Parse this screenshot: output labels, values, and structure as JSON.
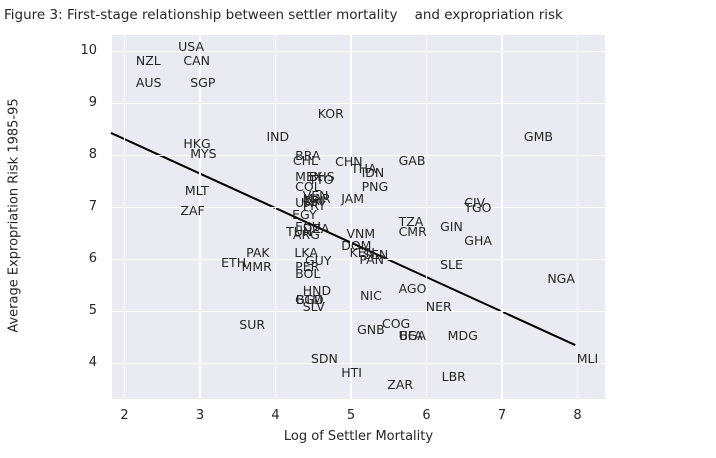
{
  "title": "Figure 3: First-stage relationship between settler mortality    and expropriation risk",
  "colors": {
    "plot_background": "#eaeaf2",
    "grid": "#ffffff",
    "text": "#262626",
    "trend_line": "#000000"
  },
  "chart_data": {
    "type": "scatter",
    "title": "Figure 3: First-stage relationship between settler mortality    and expropriation risk",
    "xlabel": "Log of Settler Mortality",
    "ylabel": "Average Expropriation Risk 1985-95",
    "xlim": [
      1.834,
      8.364
    ],
    "ylim": [
      3.313,
      10.313
    ],
    "x_ticks": [
      2,
      3,
      4,
      5,
      6,
      7,
      8
    ],
    "y_ticks": [
      4,
      5,
      6,
      7,
      8,
      9,
      10
    ],
    "grid": true,
    "legend": false,
    "marker_style": "country-code text annotations, no dot markers",
    "trend_line": {
      "x1": 1.82,
      "y1": 8.43,
      "x2": 7.97,
      "y2": 4.35,
      "color": "#000000"
    },
    "points": [
      {
        "label": "USA",
        "x": 2.71,
        "y": 10.0
      },
      {
        "label": "NZL",
        "x": 2.15,
        "y": 9.73
      },
      {
        "label": "CAN",
        "x": 2.78,
        "y": 9.73
      },
      {
        "label": "AUS",
        "x": 2.15,
        "y": 9.32
      },
      {
        "label": "SGP",
        "x": 2.87,
        "y": 9.32
      },
      {
        "label": "KOR",
        "x": 4.56,
        "y": 8.71
      },
      {
        "label": "HKG",
        "x": 2.78,
        "y": 8.14
      },
      {
        "label": "MYS",
        "x": 2.87,
        "y": 7.95
      },
      {
        "label": "IND",
        "x": 3.88,
        "y": 8.27
      },
      {
        "label": "GMB",
        "x": 7.29,
        "y": 8.27
      },
      {
        "label": "MLT",
        "x": 2.8,
        "y": 7.23
      },
      {
        "label": "ZAF",
        "x": 2.74,
        "y": 6.86
      },
      {
        "label": "BRA",
        "x": 4.26,
        "y": 7.91
      },
      {
        "label": "CHL",
        "x": 4.23,
        "y": 7.82
      },
      {
        "label": "CHN",
        "x": 4.79,
        "y": 7.79
      },
      {
        "label": "THA",
        "x": 5.0,
        "y": 7.65
      },
      {
        "label": "IDN",
        "x": 5.14,
        "y": 7.59
      },
      {
        "label": "GAB",
        "x": 5.63,
        "y": 7.82
      },
      {
        "label": "MEX",
        "x": 4.26,
        "y": 7.5
      },
      {
        "label": "BHS",
        "x": 4.44,
        "y": 7.5
      },
      {
        "label": "TTO",
        "x": 4.44,
        "y": 7.45
      },
      {
        "label": "COL",
        "x": 4.26,
        "y": 7.32
      },
      {
        "label": "PNG",
        "x": 5.14,
        "y": 7.32
      },
      {
        "label": "VEN",
        "x": 4.36,
        "y": 7.14
      },
      {
        "label": "JAM",
        "x": 4.87,
        "y": 7.09
      },
      {
        "label": "MAR",
        "x": 4.36,
        "y": 7.09
      },
      {
        "label": "CRI",
        "x": 4.36,
        "y": 7.05
      },
      {
        "label": "URY",
        "x": 4.26,
        "y": 7.0
      },
      {
        "label": "PRY",
        "x": 4.36,
        "y": 6.95
      },
      {
        "label": "EGY",
        "x": 4.22,
        "y": 6.77
      },
      {
        "label": "ECU",
        "x": 4.26,
        "y": 6.55
      },
      {
        "label": "DZA",
        "x": 4.36,
        "y": 6.5
      },
      {
        "label": "TUN",
        "x": 4.14,
        "y": 6.45
      },
      {
        "label": "ARG",
        "x": 4.23,
        "y": 6.39
      },
      {
        "label": "TZA",
        "x": 5.63,
        "y": 6.64
      },
      {
        "label": "CMR",
        "x": 5.63,
        "y": 6.45
      },
      {
        "label": "GIN",
        "x": 6.18,
        "y": 6.55
      },
      {
        "label": "CIV",
        "x": 6.5,
        "y": 7.0
      },
      {
        "label": "TGO",
        "x": 6.5,
        "y": 6.91
      },
      {
        "label": "VNM",
        "x": 4.94,
        "y": 6.41
      },
      {
        "label": "GHA",
        "x": 6.5,
        "y": 6.27
      },
      {
        "label": "DOM",
        "x": 4.87,
        "y": 6.18
      },
      {
        "label": "KEN",
        "x": 4.98,
        "y": 6.05
      },
      {
        "label": "SEN",
        "x": 5.16,
        "y": 6.0
      },
      {
        "label": "PAN",
        "x": 5.11,
        "y": 5.91
      },
      {
        "label": "LKA",
        "x": 4.25,
        "y": 6.05
      },
      {
        "label": "PAK",
        "x": 3.61,
        "y": 6.05
      },
      {
        "label": "SLE",
        "x": 6.18,
        "y": 5.82
      },
      {
        "label": "NGA",
        "x": 7.6,
        "y": 5.55
      },
      {
        "label": "ETH",
        "x": 3.28,
        "y": 5.86
      },
      {
        "label": "MMR",
        "x": 3.55,
        "y": 5.78
      },
      {
        "label": "PER",
        "x": 4.26,
        "y": 5.77
      },
      {
        "label": "GUY",
        "x": 4.39,
        "y": 5.89
      },
      {
        "label": "BOL",
        "x": 4.26,
        "y": 5.64
      },
      {
        "label": "HND",
        "x": 4.36,
        "y": 5.32
      },
      {
        "label": "BGD",
        "x": 4.27,
        "y": 5.14
      },
      {
        "label": "GTM",
        "x": 4.26,
        "y": 5.14
      },
      {
        "label": "SLV",
        "x": 4.36,
        "y": 5.0
      },
      {
        "label": "NIC",
        "x": 5.12,
        "y": 5.22
      },
      {
        "label": "AGO",
        "x": 5.63,
        "y": 5.36
      },
      {
        "label": "NER",
        "x": 5.99,
        "y": 5.0
      },
      {
        "label": "SUR",
        "x": 3.52,
        "y": 4.66
      },
      {
        "label": "GNB",
        "x": 5.08,
        "y": 4.56
      },
      {
        "label": "COG",
        "x": 5.41,
        "y": 4.67
      },
      {
        "label": "BFA",
        "x": 5.64,
        "y": 4.45
      },
      {
        "label": "UGA",
        "x": 5.63,
        "y": 4.45
      },
      {
        "label": "MDG",
        "x": 6.28,
        "y": 4.45
      },
      {
        "label": "SDN",
        "x": 4.47,
        "y": 4.0
      },
      {
        "label": "ZAR",
        "x": 5.48,
        "y": 3.5
      },
      {
        "label": "HTI",
        "x": 4.87,
        "y": 3.73
      },
      {
        "label": "LBR",
        "x": 6.2,
        "y": 3.66
      },
      {
        "label": "MLI",
        "x": 7.99,
        "y": 4.0
      }
    ]
  }
}
